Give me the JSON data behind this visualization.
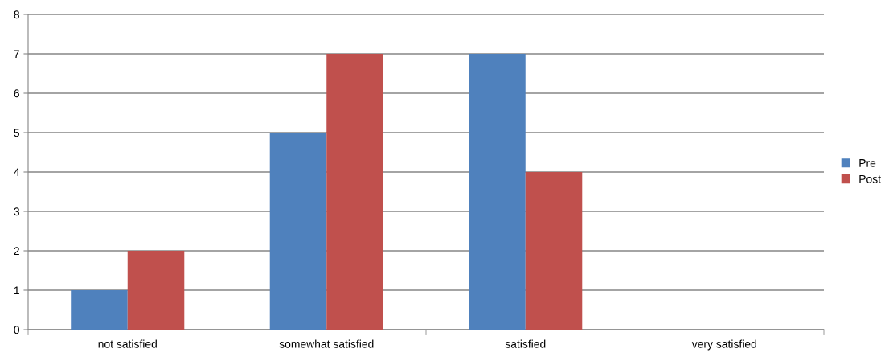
{
  "chart_data": {
    "type": "bar",
    "categories": [
      "not satisfied",
      "somewhat satisfied",
      "satisfied",
      "very satisfied"
    ],
    "series": [
      {
        "name": "Pre",
        "color": "#4f81bd",
        "values": [
          1,
          5,
          7,
          0
        ]
      },
      {
        "name": "Post",
        "color": "#c0504d",
        "values": [
          2,
          7,
          4,
          0
        ]
      }
    ],
    "ylim": [
      0,
      8
    ],
    "yticks": [
      0,
      1,
      2,
      3,
      4,
      5,
      6,
      7,
      8
    ],
    "grid": "y",
    "legend": "right"
  }
}
